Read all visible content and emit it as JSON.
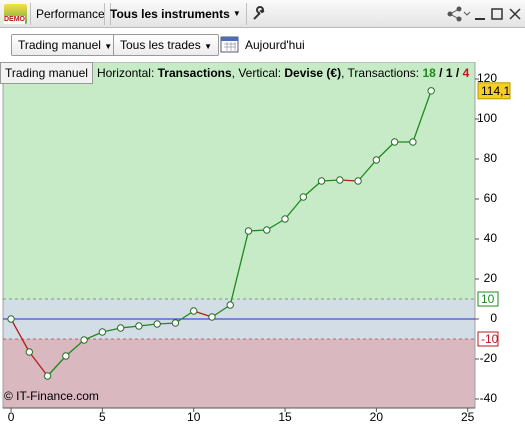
{
  "toolbar": {
    "logo": "DEMO",
    "tabs": [
      "Performance",
      "Tous les instruments"
    ]
  },
  "filters": {
    "mode": "Trading manuel",
    "trades": "Tous les trades",
    "date": "Aujourd'hui"
  },
  "chart_header": {
    "tab": "Trading manuel",
    "horizontal_prefix": "Horizontal:",
    "horizontal": "Transactions",
    "vertical_prefix": ", Vertical:",
    "vertical": "Devise (€)",
    "count_prefix": ", Transactions:",
    "wins": 18,
    "separator": "/",
    "even": 1,
    "losses": 4
  },
  "chart_data": {
    "type": "line",
    "credit": "© IT-Finance.com",
    "x": [
      0,
      1,
      2,
      3,
      4,
      5,
      6,
      7,
      8,
      9,
      10,
      11,
      12,
      13,
      14,
      15,
      16,
      17,
      18,
      19,
      20,
      21,
      22,
      23
    ],
    "series": [
      {
        "values": [
          0,
          -16.5,
          -28.5,
          -18.5,
          -10.5,
          -6.5,
          -4.5,
          -3.5,
          -2.5,
          -2,
          4,
          1,
          7,
          44,
          44.5,
          50,
          61,
          69,
          69.5,
          69,
          79.5,
          88.5,
          88.5,
          114.1
        ],
        "value_labels": [
          null,
          null,
          null,
          null,
          null,
          null,
          null,
          null,
          null,
          null,
          null,
          null,
          null,
          null,
          null,
          null,
          null,
          null,
          null,
          null,
          null,
          null,
          null,
          "114,1"
        ]
      }
    ],
    "colors": {
      "up": "#1e8a1e",
      "down": "#b81c1c",
      "zero": "#2230c8",
      "upper_zone": "#c6ebc6",
      "mid_zone": "#d3dde6",
      "lower_zone": "#d9b8c0"
    },
    "thresholds": [
      10,
      -10
    ],
    "xlim": [
      -0.44,
      25.4
    ],
    "xticks": [
      0,
      5,
      10,
      15,
      20,
      25
    ],
    "ylim": [
      -44.5,
      128.5
    ],
    "yticks": [
      120,
      100,
      80,
      60,
      40,
      20,
      0,
      -20,
      -40
    ]
  }
}
